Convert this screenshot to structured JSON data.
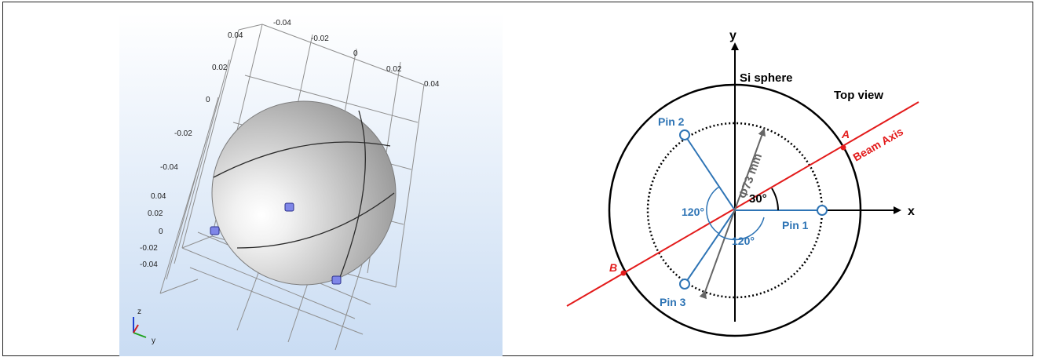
{
  "left_view": {
    "ticks_top_x": [
      "-0.04",
      "-0.02",
      "0",
      "0.02",
      "0.04"
    ],
    "ticks_top_y": [
      "0.04",
      "0.02",
      "0",
      "-0.02",
      "-0.04"
    ],
    "ticks_left_z": [
      "0.04",
      "0.02",
      "0",
      "-0.02",
      "-0.04"
    ],
    "triad": {
      "z_label": "z",
      "y_label": "y"
    },
    "colors": {
      "bg_top": "#ffffff",
      "bg_bottom": "#c9dcf3",
      "sphere": "#bfbfbf",
      "pin": "#7f86e8"
    }
  },
  "right_view": {
    "axis_x_label": "x",
    "axis_y_label": "y",
    "sphere_label": "Si sphere",
    "view_label": "Top view",
    "beam_label": "Beam Axis",
    "point_a": "A",
    "point_b": "B",
    "pins": [
      "Pin 1",
      "Pin 2",
      "Pin 3"
    ],
    "diameter_label": "Φ73 mm",
    "angle_beam": "30°",
    "angle_pins_left": "120°",
    "angle_pins_bottom": "120°",
    "colors": {
      "beam": "#e31b1b",
      "pin": "#2e74b5",
      "arrow": "#666666",
      "text": "#000000"
    }
  }
}
